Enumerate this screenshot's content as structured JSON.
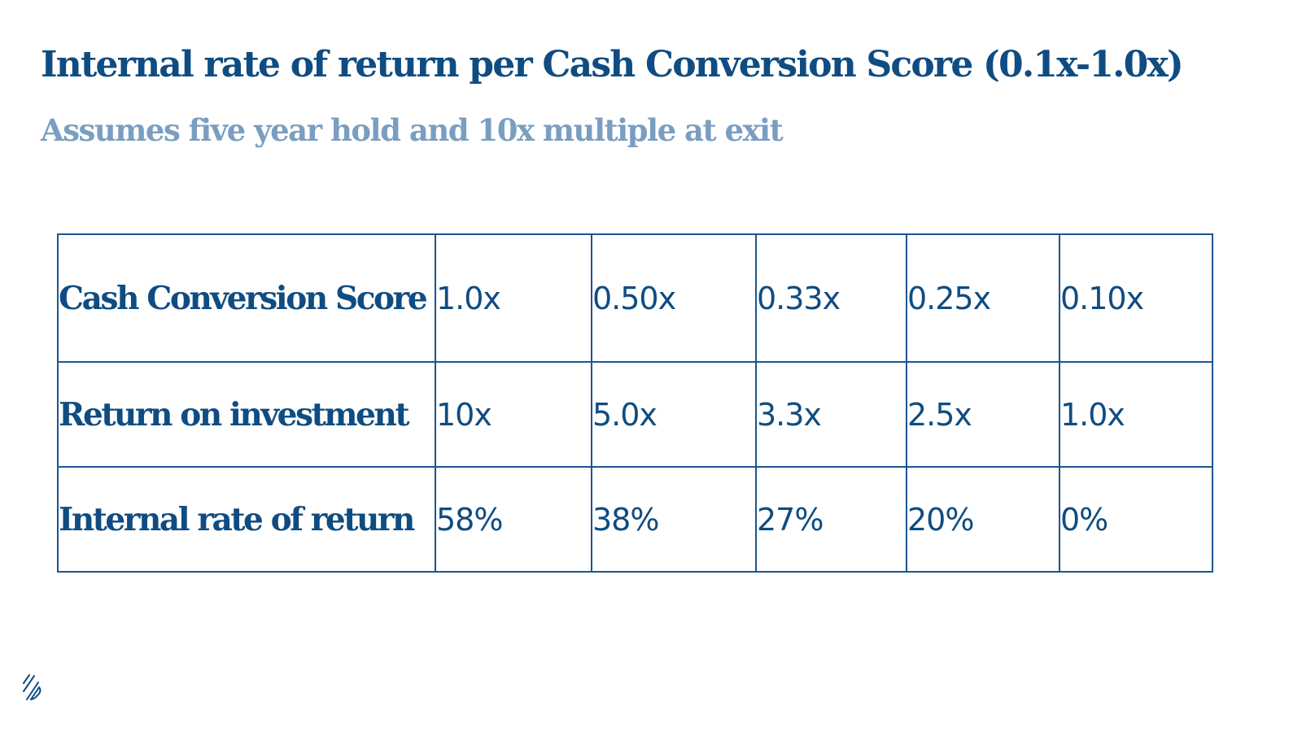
{
  "slide": {
    "title": "Internal rate of return per Cash Conversion Score (0.1x-1.0x)",
    "subtitle": "Assumes five year hold and 10x multiple at exit"
  },
  "table": {
    "rows": [
      {
        "label": "Cash Conversion Score",
        "values": [
          "1.0x",
          "0.50x",
          "0.33x",
          "0.25x",
          "0.10x"
        ]
      },
      {
        "label": "Return on investment",
        "values": [
          "10x",
          "5.0x",
          "3.3x",
          "2.5x",
          "1.0x"
        ]
      },
      {
        "label": "Internal rate of return",
        "values": [
          "58%",
          "38%",
          "27%",
          "20%",
          "0%"
        ]
      }
    ]
  },
  "colors": {
    "title": "#0f4c81",
    "subtitle": "#7a9ec1",
    "table_border": "#1c5590"
  },
  "logo": {
    "icon": "brand-logo-icon"
  }
}
